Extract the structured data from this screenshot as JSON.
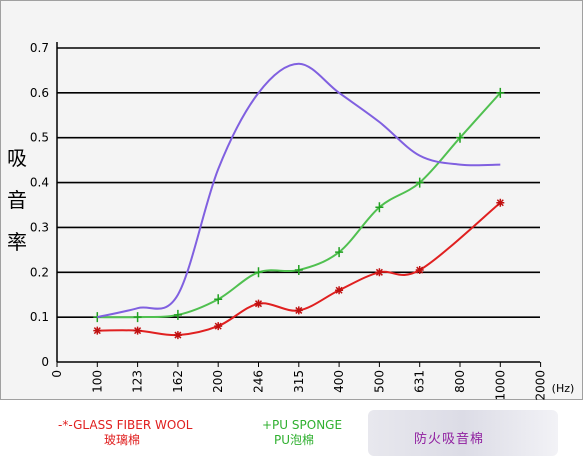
{
  "chart_data": {
    "type": "line",
    "ylabel": "吸音率",
    "x_unit": "(Hz)",
    "y_ticks": [
      "0",
      "0.1",
      "0.2",
      "0.3",
      "0.4",
      "0.5",
      "0.6",
      "0.7"
    ],
    "x_ticks": [
      "0",
      "100",
      "123",
      "162",
      "200",
      "246",
      "315",
      "400",
      "500",
      "631",
      "800",
      "1000",
      "2000"
    ],
    "ylim": [
      0,
      0.7
    ],
    "grid": "horizontal",
    "series": [
      {
        "name": "-*-GLASS FIBER WOOL 玻璃棉",
        "color": "#e02020",
        "marker": "asterisk",
        "x": [
          "100",
          "123",
          "162",
          "200",
          "246",
          "315",
          "400",
          "500",
          "631",
          "1000"
        ],
        "values": [
          0.07,
          0.07,
          0.06,
          0.08,
          0.13,
          0.115,
          0.16,
          0.2,
          0.205,
          0.355
        ]
      },
      {
        "name": "+PU SPONGE PU泡棉",
        "color": "#50c050",
        "marker": "plus",
        "x": [
          "100",
          "123",
          "162",
          "200",
          "246",
          "315",
          "400",
          "500",
          "631",
          "800",
          "1000"
        ],
        "values": [
          0.1,
          0.1,
          0.105,
          0.14,
          0.2,
          0.205,
          0.245,
          0.345,
          0.4,
          0.5,
          0.6
        ]
      },
      {
        "name": "防火吸音棉",
        "color": "#8060e0",
        "marker": "none",
        "x": [
          "100",
          "123",
          "162",
          "200",
          "246",
          "315",
          "400",
          "500",
          "631",
          "800",
          "1000"
        ],
        "values": [
          0.1,
          0.12,
          0.15,
          0.43,
          0.6,
          0.665,
          0.6,
          0.535,
          0.46,
          0.44,
          0.44
        ]
      }
    ]
  },
  "legend": {
    "glass_line1": "-*-GLASS FIBER WOOL",
    "glass_line2": "玻璃棉",
    "pu_line1": "+PU SPONGE",
    "pu_line2": "PU泡棉",
    "fire": "防火吸音棉"
  }
}
